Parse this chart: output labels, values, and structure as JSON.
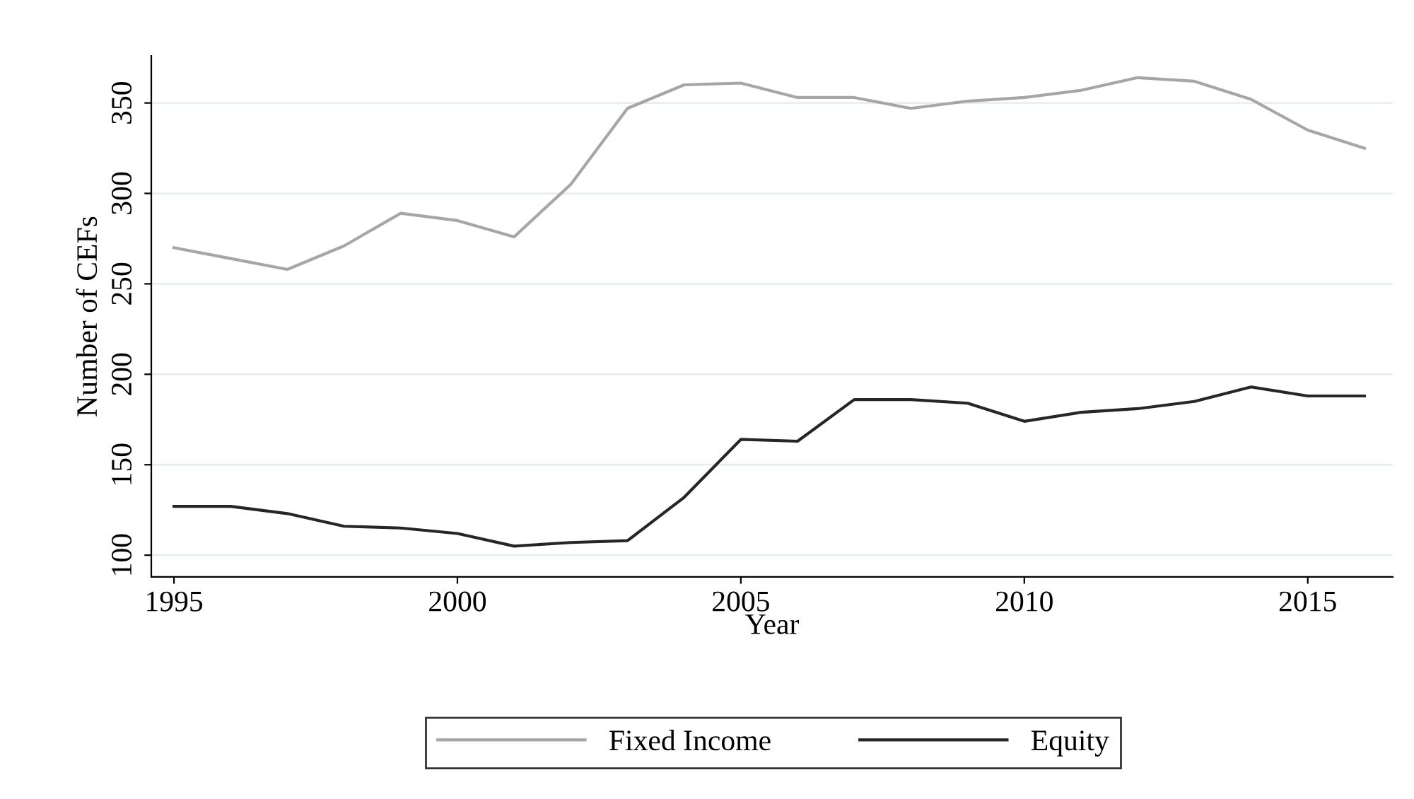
{
  "chart_data": {
    "type": "line",
    "xlabel": "Year",
    "ylabel": "Number of CEFs",
    "x": [
      1995,
      1996,
      1997,
      1998,
      1999,
      2000,
      2001,
      2002,
      2003,
      2004,
      2005,
      2006,
      2007,
      2008,
      2009,
      2010,
      2011,
      2012,
      2013,
      2014,
      2015,
      2016
    ],
    "series": [
      {
        "name": "Fixed Income",
        "color": "#a6a6a6",
        "values": [
          270,
          264,
          258,
          271,
          289,
          285,
          276,
          305,
          347,
          360,
          361,
          353,
          353,
          347,
          351,
          353,
          357,
          364,
          362,
          352,
          335,
          325
        ]
      },
      {
        "name": "Equity",
        "color": "#262626",
        "values": [
          127,
          127,
          123,
          116,
          115,
          112,
          105,
          107,
          108,
          132,
          164,
          163,
          186,
          186,
          184,
          174,
          179,
          181,
          185,
          193,
          188,
          188
        ]
      }
    ],
    "xlim": [
      1994.6,
      2016.5
    ],
    "xticks": [
      1995,
      2000,
      2005,
      2010,
      2015
    ],
    "ylim": [
      88,
      376
    ],
    "yticks": [
      100,
      150,
      200,
      250,
      300,
      350
    ],
    "grid": "y",
    "legend": "bottom",
    "line_style": "solid",
    "marker": "none"
  }
}
